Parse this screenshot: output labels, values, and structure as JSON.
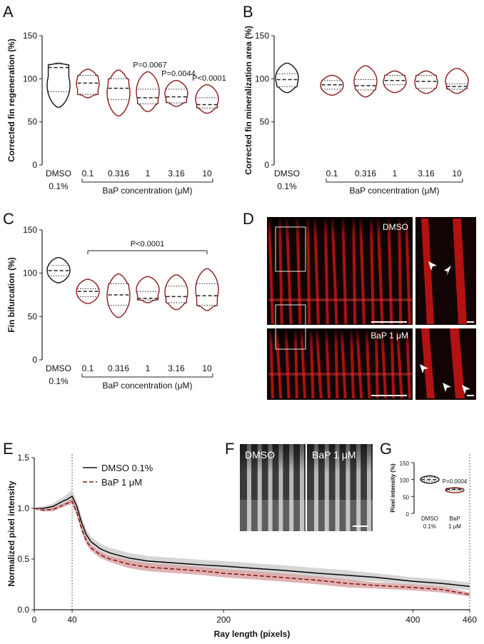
{
  "colors": {
    "dmso": "#111111",
    "bap": "#8b1a1a",
    "dmso_band": "#cfcfcf",
    "bap_band": "#d9a5a5",
    "fluor_red": "#c41414",
    "dark_bg": "#120404",
    "gray_img": "#3a3a3a"
  },
  "panels": {
    "A": "A",
    "B": "B",
    "C": "C",
    "D": "D",
    "E": "E",
    "F": "F",
    "G": "G"
  },
  "panel_d": {
    "label_top": "DMSO",
    "label_bottom": "BaP 1 μM"
  },
  "panel_f": {
    "label_left": "DMSO",
    "label_right": "BaP 1 μM"
  },
  "chart_data": [
    {
      "id": "A",
      "type": "violin",
      "ylabel": "Corrected fin regeneration (%)",
      "xlabel": "BaP concentration (μM)",
      "ylim": [
        0,
        150
      ],
      "yticks": [
        0,
        50,
        100,
        150
      ],
      "categories": [
        "DMSO",
        "0.1",
        "0.316",
        "1",
        "3.16",
        "10"
      ],
      "category_sublabel": "0.1%",
      "group_colors": [
        "dmso",
        "bap",
        "bap",
        "bap",
        "bap",
        "bap"
      ],
      "violins": [
        {
          "min": 67,
          "max": 118,
          "median": 113,
          "q1": 85,
          "q3": 117
        },
        {
          "min": 78,
          "max": 111,
          "median": 95,
          "q1": 82,
          "q3": 104
        },
        {
          "min": 57,
          "max": 110,
          "median": 89,
          "q1": 76,
          "q3": 100
        },
        {
          "min": 62,
          "max": 108,
          "median": 78,
          "q1": 71,
          "q3": 88
        },
        {
          "min": 68,
          "max": 98,
          "median": 79,
          "q1": 72,
          "q3": 88
        },
        {
          "min": 60,
          "max": 93,
          "median": 70,
          "q1": 66,
          "q3": 78
        }
      ],
      "pvalues": [
        {
          "category": "1",
          "text": "P=0.0067"
        },
        {
          "category": "3.16",
          "text": "P=0.0044"
        },
        {
          "category": "10",
          "text": "P<0.0001"
        }
      ]
    },
    {
      "id": "B",
      "type": "violin",
      "ylabel": "Corrected fin mineralization area (%)",
      "xlabel": "BaP concentration (μM)",
      "ylim": [
        0,
        150
      ],
      "yticks": [
        0,
        50,
        100,
        150
      ],
      "categories": [
        "DMSO",
        "0.1",
        "0.316",
        "1",
        "3.16",
        "10"
      ],
      "category_sublabel": "0.1%",
      "group_colors": [
        "dmso",
        "bap",
        "bap",
        "bap",
        "bap",
        "bap"
      ],
      "violins": [
        {
          "min": 84,
          "max": 118,
          "median": 99,
          "q1": 91,
          "q3": 106
        },
        {
          "min": 81,
          "max": 104,
          "median": 93,
          "q1": 88,
          "q3": 98
        },
        {
          "min": 79,
          "max": 115,
          "median": 92,
          "q1": 87,
          "q3": 99
        },
        {
          "min": 84,
          "max": 109,
          "median": 98,
          "q1": 93,
          "q3": 104
        },
        {
          "min": 83,
          "max": 109,
          "median": 97,
          "q1": 89,
          "q3": 104
        },
        {
          "min": 83,
          "max": 112,
          "median": 91,
          "q1": 88,
          "q3": 94
        }
      ],
      "pvalues": []
    },
    {
      "id": "C",
      "type": "violin",
      "ylabel": "Fin bifurcation (%)",
      "xlabel": "BaP concentration (μM)",
      "ylim": [
        0,
        150
      ],
      "yticks": [
        0,
        50,
        100,
        150
      ],
      "categories": [
        "DMSO",
        "0.1",
        "0.316",
        "1",
        "3.16",
        "10"
      ],
      "category_sublabel": "0.1%",
      "group_colors": [
        "dmso",
        "bap",
        "bap",
        "bap",
        "bap",
        "bap"
      ],
      "violins": [
        {
          "min": 89,
          "max": 118,
          "median": 103,
          "q1": 97,
          "q3": 109
        },
        {
          "min": 65,
          "max": 93,
          "median": 79,
          "q1": 73,
          "q3": 82
        },
        {
          "min": 49,
          "max": 99,
          "median": 75,
          "q1": 63,
          "q3": 88
        },
        {
          "min": 66,
          "max": 96,
          "median": 71,
          "q1": 69,
          "q3": 79
        },
        {
          "min": 58,
          "max": 98,
          "median": 73,
          "q1": 66,
          "q3": 85
        },
        {
          "min": 57,
          "max": 105,
          "median": 74,
          "q1": 63,
          "q3": 88
        }
      ],
      "bracket_text": "P<0.0001"
    },
    {
      "id": "E",
      "type": "line",
      "ylabel": "Normalized pixel intensity",
      "xlabel": "Ray length (pixels)",
      "xlim": [
        0,
        460
      ],
      "ylim": [
        0,
        1.5
      ],
      "xticks": [
        0,
        40,
        200,
        400,
        460
      ],
      "yticks": [
        0.0,
        0.5,
        1.0,
        1.5
      ],
      "vlines": [
        40,
        460
      ],
      "legend_position": "top-left",
      "x": [
        0,
        10,
        20,
        30,
        35,
        40,
        45,
        50,
        55,
        60,
        70,
        80,
        100,
        120,
        150,
        180,
        200,
        230,
        260,
        300,
        330,
        360,
        400,
        430,
        460
      ],
      "series": [
        {
          "name": "DMSO 0.1%",
          "color": "dmso",
          "style": "solid",
          "values": [
            1.0,
            1.0,
            1.02,
            1.07,
            1.09,
            1.12,
            1.02,
            0.86,
            0.74,
            0.67,
            0.6,
            0.56,
            0.51,
            0.48,
            0.46,
            0.44,
            0.43,
            0.41,
            0.39,
            0.36,
            0.34,
            0.32,
            0.28,
            0.26,
            0.23
          ],
          "error": [
            0.01,
            0.02,
            0.03,
            0.04,
            0.05,
            0.06,
            0.05,
            0.05,
            0.05,
            0.05,
            0.05,
            0.05,
            0.05,
            0.05,
            0.05,
            0.05,
            0.05,
            0.05,
            0.05,
            0.05,
            0.05,
            0.04,
            0.04,
            0.04,
            0.04
          ]
        },
        {
          "name": "BaP 1 μM",
          "color": "bap",
          "style": "dashed",
          "values": [
            1.0,
            0.98,
            0.99,
            1.03,
            1.05,
            1.07,
            0.96,
            0.8,
            0.68,
            0.61,
            0.54,
            0.5,
            0.45,
            0.42,
            0.4,
            0.38,
            0.36,
            0.34,
            0.32,
            0.29,
            0.26,
            0.24,
            0.22,
            0.2,
            0.15
          ],
          "error": [
            0.01,
            0.01,
            0.02,
            0.02,
            0.02,
            0.03,
            0.03,
            0.03,
            0.03,
            0.03,
            0.03,
            0.03,
            0.04,
            0.04,
            0.04,
            0.04,
            0.04,
            0.04,
            0.04,
            0.04,
            0.04,
            0.03,
            0.03,
            0.03,
            0.02
          ]
        }
      ]
    },
    {
      "id": "G",
      "type": "violin",
      "ylabel": "Pixel intensity (%)",
      "ylim": [
        0,
        150
      ],
      "yticks": [
        0,
        50,
        100,
        150
      ],
      "categories": [
        "DMSO",
        "BaP"
      ],
      "category_sublabels": [
        "0.1%",
        "1 μM"
      ],
      "group_colors": [
        "dmso",
        "bap"
      ],
      "violins": [
        {
          "min": 89,
          "max": 111,
          "median": 100,
          "q1": 95,
          "q3": 106
        },
        {
          "min": 61,
          "max": 76,
          "median": 71,
          "q1": 68,
          "q3": 74
        }
      ],
      "pvalues": [
        {
          "category": "BaP",
          "text": "P=0.0004"
        }
      ]
    }
  ]
}
